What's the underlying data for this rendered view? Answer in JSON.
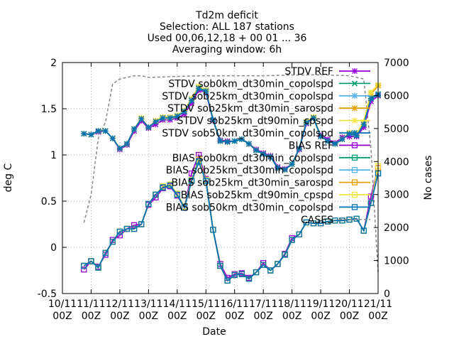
{
  "chart_data": {
    "type": "line",
    "title": "Td2m deficit",
    "subtitle_lines": [
      "Selection: ALL    187 stations",
      "Used 00,06,12,18 + 00 01 ... 36",
      "Averaging window:  6h"
    ],
    "xlabel": "Date",
    "ylabel": "deg C",
    "y2label": "No cases",
    "ylim": [
      -0.5,
      2
    ],
    "y2lim": [
      0,
      7000
    ],
    "yticks": [
      "-0.5",
      "0",
      "0.5",
      "1",
      "1.5",
      "2"
    ],
    "y2ticks": [
      "0",
      "1000",
      "2000",
      "3000",
      "4000",
      "5000",
      "6000",
      "7000"
    ],
    "xtick_labels": [
      [
        "10/11",
        "00Z"
      ],
      [
        "11/11",
        "00Z"
      ],
      [
        "12/11",
        "00Z"
      ],
      [
        "13/11",
        "00Z"
      ],
      [
        "14/11",
        "00Z"
      ],
      [
        "15/11",
        "00Z"
      ],
      [
        "16/11",
        "00Z"
      ],
      [
        "17/11",
        "00Z"
      ],
      [
        "18/11",
        "00Z"
      ],
      [
        "19/11",
        "00Z"
      ],
      [
        "20/11",
        "00Z"
      ],
      [
        "21/11",
        "00Z"
      ]
    ],
    "x": [
      "10/11 18Z",
      "11/11 00Z",
      "11/11 06Z",
      "11/11 12Z",
      "11/11 18Z",
      "12/11 00Z",
      "12/11 06Z",
      "12/11 12Z",
      "12/11 18Z",
      "13/11 00Z",
      "13/11 06Z",
      "13/11 12Z",
      "13/11 18Z",
      "14/11 00Z",
      "14/11 06Z",
      "14/11 12Z",
      "14/11 18Z",
      "15/11 00Z",
      "15/11 06Z",
      "15/11 12Z",
      "15/11 18Z",
      "16/11 00Z",
      "16/11 06Z",
      "16/11 12Z",
      "16/11 18Z",
      "17/11 00Z",
      "17/11 06Z",
      "17/11 12Z",
      "17/11 18Z",
      "18/11 00Z",
      "18/11 06Z",
      "18/11 12Z",
      "18/11 18Z",
      "19/11 00Z",
      "19/11 06Z",
      "19/11 12Z",
      "19/11 18Z",
      "20/11 00Z",
      "20/11 06Z",
      "20/11 12Z",
      "20/11 18Z",
      "21/11 00Z"
    ],
    "series": [
      {
        "name": "STDV REF",
        "axis": "y1",
        "color": "#9400d3",
        "marker": "star",
        "values": [
          1.23,
          1.22,
          1.25,
          1.26,
          1.18,
          1.06,
          1.11,
          1.26,
          1.37,
          1.29,
          1.33,
          1.38,
          1.38,
          1.4,
          1.44,
          1.56,
          1.7,
          1.68,
          1.37,
          1.16,
          1.15,
          1.15,
          1.17,
          1.12,
          1.06,
          1.02,
          0.99,
          0.87,
          0.85,
          0.9,
          1.06,
          1.34,
          1.4,
          1.21,
          1.17,
          1.13,
          1.19,
          1.2,
          1.2,
          1.3,
          1.58,
          1.64
        ]
      },
      {
        "name": "STDV sob0km_dt30min_copolspd",
        "axis": "y1",
        "color": "#009e73",
        "marker": "x",
        "values": [
          1.23,
          1.22,
          1.26,
          1.26,
          1.18,
          1.07,
          1.12,
          1.28,
          1.39,
          1.3,
          1.37,
          1.4,
          1.4,
          1.42,
          1.47,
          1.6,
          1.73,
          1.7,
          1.38,
          1.15,
          1.14,
          1.15,
          1.17,
          1.12,
          1.05,
          1.01,
          0.98,
          0.86,
          0.84,
          0.9,
          1.07,
          1.36,
          1.4,
          1.2,
          1.15,
          1.12,
          1.17,
          1.24,
          1.22,
          1.34,
          1.62,
          1.66
        ]
      },
      {
        "name": "STDV sob25km_dt30min_copolspd",
        "axis": "y1",
        "color": "#56b4e9",
        "marker": "star",
        "values": [
          1.23,
          1.22,
          1.26,
          1.26,
          1.18,
          1.07,
          1.12,
          1.28,
          1.39,
          1.3,
          1.36,
          1.4,
          1.4,
          1.42,
          1.47,
          1.59,
          1.72,
          1.69,
          1.38,
          1.15,
          1.14,
          1.15,
          1.17,
          1.12,
          1.05,
          1.01,
          0.98,
          0.86,
          0.84,
          0.9,
          1.07,
          1.35,
          1.4,
          1.2,
          1.15,
          1.12,
          1.17,
          1.23,
          1.21,
          1.33,
          1.61,
          1.65
        ]
      },
      {
        "name": "STDV sob25km_dt30min_sarospd",
        "axis": "y1",
        "color": "#e69f00",
        "marker": "star",
        "values": [
          1.23,
          1.22,
          1.26,
          1.26,
          1.18,
          1.07,
          1.12,
          1.28,
          1.39,
          1.3,
          1.37,
          1.41,
          1.41,
          1.42,
          1.48,
          1.61,
          1.74,
          1.7,
          1.38,
          1.15,
          1.14,
          1.15,
          1.17,
          1.12,
          1.05,
          1.01,
          0.98,
          0.86,
          0.84,
          0.9,
          1.07,
          1.36,
          1.41,
          1.2,
          1.15,
          1.12,
          1.17,
          1.24,
          1.23,
          1.35,
          1.66,
          1.75
        ]
      },
      {
        "name": "STDV sob25km_dt90min_cpspd",
        "axis": "y1",
        "color": "#f0e442",
        "marker": "star",
        "values": [
          1.23,
          1.22,
          1.26,
          1.26,
          1.18,
          1.07,
          1.12,
          1.28,
          1.4,
          1.3,
          1.37,
          1.41,
          1.41,
          1.43,
          1.48,
          1.61,
          1.74,
          1.7,
          1.38,
          1.15,
          1.14,
          1.15,
          1.17,
          1.12,
          1.05,
          1.01,
          0.98,
          0.86,
          0.84,
          0.9,
          1.07,
          1.36,
          1.41,
          1.2,
          1.15,
          1.12,
          1.17,
          1.24,
          1.23,
          1.36,
          1.68,
          1.76
        ]
      },
      {
        "name": "STDV sob50km_dt30min_copolspd",
        "axis": "y1",
        "color": "#0072b2",
        "marker": "star",
        "values": [
          1.23,
          1.22,
          1.26,
          1.26,
          1.18,
          1.07,
          1.12,
          1.28,
          1.39,
          1.3,
          1.36,
          1.4,
          1.4,
          1.42,
          1.47,
          1.59,
          1.72,
          1.69,
          1.38,
          1.15,
          1.14,
          1.15,
          1.17,
          1.12,
          1.05,
          1.01,
          0.98,
          0.86,
          0.84,
          0.9,
          1.07,
          1.35,
          1.4,
          1.2,
          1.15,
          1.12,
          1.17,
          1.23,
          1.21,
          1.33,
          1.61,
          1.65
        ]
      },
      {
        "name": "BIAS REF",
        "axis": "y1",
        "color": "#9400d3",
        "marker": "square",
        "values": [
          -0.24,
          -0.15,
          -0.21,
          -0.08,
          0.08,
          0.13,
          0.2,
          0.24,
          0.25,
          0.46,
          0.54,
          0.64,
          0.66,
          0.56,
          0.43,
          0.8,
          1.0,
          0.74,
          0.19,
          -0.18,
          -0.33,
          -0.29,
          -0.28,
          -0.33,
          -0.27,
          -0.17,
          -0.25,
          -0.18,
          -0.07,
          0.1,
          0.14,
          0.27,
          0.26,
          0.26,
          0.28,
          0.29,
          0.29,
          0.3,
          0.31,
          0.18,
          0.55,
          0.86
        ]
      },
      {
        "name": "BIAS sob0km_dt30min_copolspd",
        "axis": "y1",
        "color": "#009e73",
        "marker": "square",
        "values": [
          -0.2,
          -0.15,
          -0.22,
          -0.06,
          0.06,
          0.17,
          0.2,
          0.2,
          0.25,
          0.47,
          0.57,
          0.65,
          0.67,
          0.57,
          0.43,
          0.72,
          0.92,
          0.72,
          0.19,
          -0.2,
          -0.36,
          -0.3,
          -0.29,
          -0.34,
          -0.27,
          -0.19,
          -0.25,
          -0.18,
          -0.08,
          0.08,
          0.14,
          0.27,
          0.26,
          0.26,
          0.28,
          0.29,
          0.29,
          0.3,
          0.31,
          0.18,
          0.48,
          0.8
        ]
      },
      {
        "name": "BIAS sob25km_dt30min_copolspd",
        "axis": "y1",
        "color": "#56b4e9",
        "marker": "square",
        "values": [
          -0.2,
          -0.15,
          -0.22,
          -0.06,
          0.06,
          0.17,
          0.2,
          0.2,
          0.25,
          0.47,
          0.57,
          0.65,
          0.67,
          0.57,
          0.43,
          0.72,
          0.93,
          0.72,
          0.19,
          -0.2,
          -0.36,
          -0.3,
          -0.29,
          -0.34,
          -0.27,
          -0.19,
          -0.25,
          -0.18,
          -0.08,
          0.08,
          0.14,
          0.27,
          0.26,
          0.26,
          0.28,
          0.29,
          0.29,
          0.3,
          0.31,
          0.18,
          0.48,
          0.8
        ]
      },
      {
        "name": "BIAS sob25km_dt30min_sarospd",
        "axis": "y1",
        "color": "#e69f00",
        "marker": "square",
        "values": [
          -0.2,
          -0.15,
          -0.22,
          -0.06,
          0.06,
          0.17,
          0.2,
          0.2,
          0.25,
          0.47,
          0.57,
          0.66,
          0.68,
          0.58,
          0.44,
          0.73,
          0.95,
          0.73,
          0.19,
          -0.2,
          -0.36,
          -0.3,
          -0.29,
          -0.34,
          -0.27,
          -0.19,
          -0.25,
          -0.18,
          -0.08,
          0.08,
          0.14,
          0.27,
          0.26,
          0.26,
          0.28,
          0.29,
          0.29,
          0.3,
          0.31,
          0.18,
          0.48,
          0.86
        ]
      },
      {
        "name": "BIAS sob25km_dt90min_cpspd",
        "axis": "y1",
        "color": "#f0e442",
        "marker": "square",
        "values": [
          -0.2,
          -0.15,
          -0.22,
          -0.06,
          0.06,
          0.17,
          0.2,
          0.2,
          0.25,
          0.47,
          0.57,
          0.66,
          0.68,
          0.58,
          0.44,
          0.73,
          0.95,
          0.73,
          0.19,
          -0.2,
          -0.36,
          -0.3,
          -0.29,
          -0.34,
          -0.27,
          -0.19,
          -0.25,
          -0.18,
          -0.08,
          0.08,
          0.14,
          0.27,
          0.26,
          0.26,
          0.28,
          0.29,
          0.29,
          0.3,
          0.31,
          0.18,
          0.48,
          0.88
        ]
      },
      {
        "name": "BIAS sob50km_dt30min_copolspd",
        "axis": "y1",
        "color": "#0072b2",
        "marker": "square",
        "values": [
          -0.2,
          -0.15,
          -0.22,
          -0.06,
          0.06,
          0.17,
          0.2,
          0.2,
          0.25,
          0.47,
          0.57,
          0.65,
          0.67,
          0.57,
          0.43,
          0.72,
          0.93,
          0.72,
          0.19,
          -0.2,
          -0.36,
          -0.3,
          -0.29,
          -0.34,
          -0.27,
          -0.19,
          -0.25,
          -0.18,
          -0.08,
          0.08,
          0.14,
          0.27,
          0.26,
          0.26,
          0.28,
          0.29,
          0.29,
          0.3,
          0.31,
          0.18,
          0.48,
          0.8
        ]
      }
    ],
    "cases": {
      "name": "CASES",
      "axis": "y2",
      "color": "#888888",
      "style": "dashed",
      "x": [
        "10/11 18Z",
        "11/11 00Z",
        "11/11 06Z",
        "11/11 12Z",
        "11/11 18Z",
        "12/11 00Z",
        "12/11 06Z",
        "12/11 12Z",
        "12/11 18Z",
        "13/11 00Z",
        "14/11 00Z",
        "15/11 00Z",
        "16/11 00Z",
        "17/11 00Z",
        "18/11 00Z",
        "19/11 00Z",
        "20/11 00Z",
        "20/11 12Z",
        "20/11 18Z",
        "21/11 00Z"
      ],
      "values": [
        2150,
        3000,
        4700,
        5200,
        6350,
        6500,
        6550,
        6600,
        6600,
        6550,
        6580,
        6600,
        6600,
        6600,
        6620,
        6630,
        6600,
        6500,
        4400,
        650
      ]
    },
    "grid": true,
    "legend_placement": "top-right (inside)"
  }
}
